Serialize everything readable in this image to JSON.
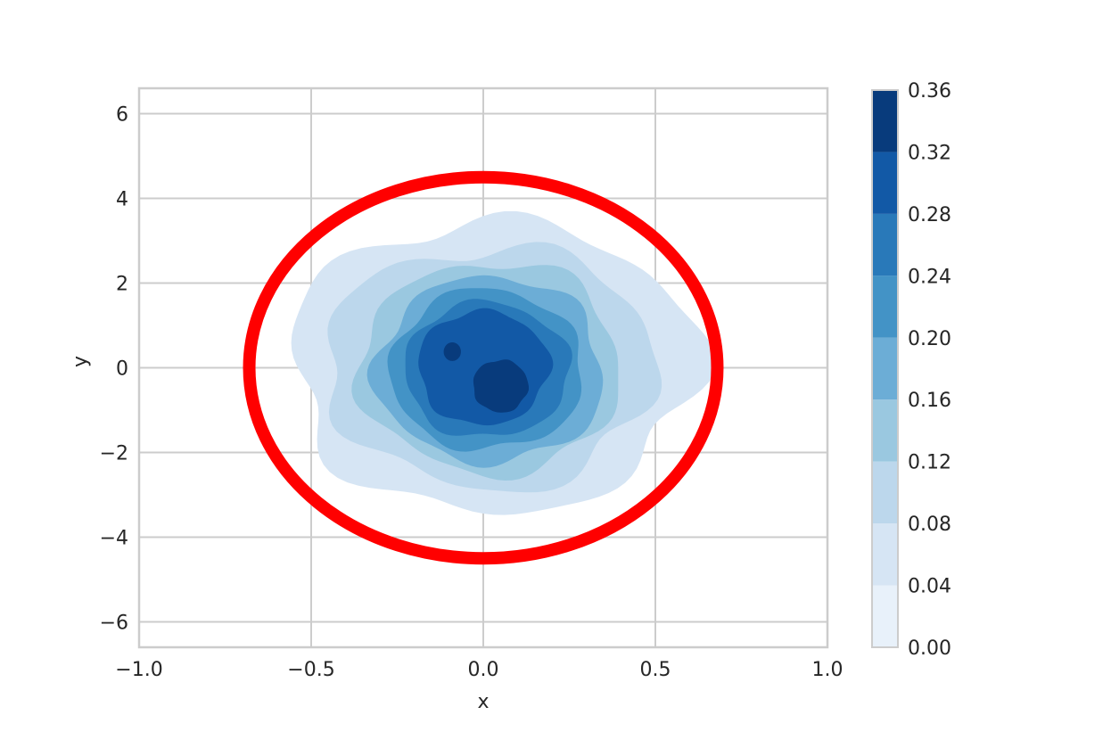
{
  "chart_data": {
    "type": "contour",
    "xlabel": "x",
    "ylabel": "y",
    "xlim": [
      -1.0,
      1.0
    ],
    "ylim": [
      -6.6,
      6.6
    ],
    "x_ticks": [
      -1.0,
      -0.5,
      0.0,
      0.5,
      1.0
    ],
    "x_tick_labels": [
      "−1.0",
      "−0.5",
      "0.0",
      "0.5",
      "1.0"
    ],
    "y_ticks": [
      -6,
      -4,
      -2,
      0,
      2,
      4,
      6
    ],
    "y_tick_labels": [
      "−6",
      "−4",
      "−2",
      "0",
      "2",
      "4",
      "6"
    ],
    "grid": true,
    "colormap": "Blues",
    "colorbar": {
      "levels": [
        0.0,
        0.04,
        0.08,
        0.12,
        0.16,
        0.2,
        0.24,
        0.28,
        0.32,
        0.36
      ],
      "tick_labels": [
        "0.00",
        "0.04",
        "0.08",
        "0.12",
        "0.16",
        "0.20",
        "0.24",
        "0.28",
        "0.32",
        "0.36"
      ],
      "colors": [
        "#e8f1fa",
        "#d6e5f4",
        "#bcd7ec",
        "#9ac8e0",
        "#6cadd6",
        "#4393c6",
        "#2979b9",
        "#1259a6",
        "#083b7c"
      ]
    },
    "density_peaks": [
      {
        "x": 0.05,
        "y": -0.4,
        "level": 0.32
      },
      {
        "x": -0.09,
        "y": 0.4,
        "level": 0.32
      }
    ],
    "contours": [
      {
        "level": 0.04,
        "color": "#d6e5f4",
        "cx": 0.03,
        "cy": 0.05,
        "rx": 0.59,
        "ry": 3.45,
        "wobble": 0.06,
        "seed": 1
      },
      {
        "level": 0.08,
        "color": "#bcd7ec",
        "cx": 0.02,
        "cy": 0.02,
        "rx": 0.48,
        "ry": 2.85,
        "wobble": 0.06,
        "seed": 2
      },
      {
        "level": 0.12,
        "color": "#9ac8e0",
        "cx": 0.02,
        "cy": 0.0,
        "rx": 0.38,
        "ry": 2.5,
        "wobble": 0.05,
        "seed": 3
      },
      {
        "level": 0.16,
        "color": "#6cadd6",
        "cx": 0.02,
        "cy": -0.05,
        "rx": 0.33,
        "ry": 2.2,
        "wobble": 0.05,
        "seed": 4
      },
      {
        "level": 0.2,
        "color": "#4393c6",
        "cx": 0.01,
        "cy": -0.05,
        "rx": 0.28,
        "ry": 1.9,
        "wobble": 0.04,
        "seed": 5
      },
      {
        "level": 0.24,
        "color": "#2979b9",
        "cx": 0.01,
        "cy": -0.05,
        "rx": 0.24,
        "ry": 1.6,
        "wobble": 0.04,
        "seed": 6
      },
      {
        "level": 0.28,
        "color": "#1259a6",
        "cx": 0.0,
        "cy": 0.0,
        "rx": 0.19,
        "ry": 1.35,
        "wobble": 0.04,
        "seed": 7
      },
      {
        "level": 0.32,
        "color": "#083b7c",
        "cx": 0.05,
        "cy": -0.43,
        "rx": 0.08,
        "ry": 0.62,
        "wobble": 0.03,
        "seed": 8
      },
      {
        "level": 0.32,
        "color": "#083b7c",
        "cx": -0.09,
        "cy": 0.38,
        "rx": 0.025,
        "ry": 0.22,
        "wobble": 0.0,
        "seed": 9
      }
    ],
    "ellipse": {
      "cx": 0.0,
      "cy": 0.0,
      "rx": 0.68,
      "ry": 4.5,
      "color": "#ff0000"
    }
  }
}
